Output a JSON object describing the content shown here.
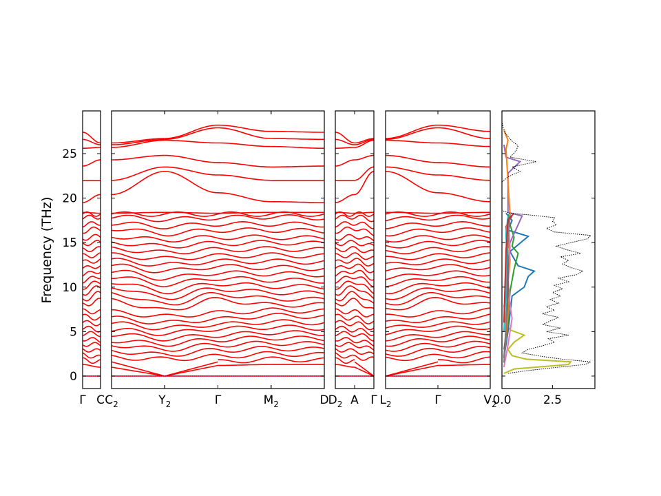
{
  "chart_data": {
    "type": "line",
    "ylabel": "Frequency (THz)",
    "ylim": [
      -1.4,
      29.8
    ],
    "yticks": [
      0,
      5,
      10,
      15,
      20,
      25
    ],
    "band_color": "#ff0000",
    "zero_line_color": "#0000cc",
    "panels": [
      {
        "segments": [
          {
            "kpoints": [
              {
                "label": "Γ",
                "sub": ""
              },
              {
                "label": "C",
                "sub": ""
              }
            ]
          }
        ]
      },
      {
        "segments": [
          {
            "kpoints": [
              {
                "label": "C",
                "sub": "2"
              },
              {
                "label": "Y",
                "sub": "2"
              }
            ]
          },
          {
            "kpoints": [
              {
                "label": "Y",
                "sub": "2"
              },
              {
                "label": "Γ",
                "sub": ""
              }
            ]
          },
          {
            "kpoints": [
              {
                "label": "Γ",
                "sub": ""
              },
              {
                "label": "M",
                "sub": "2"
              }
            ]
          },
          {
            "kpoints": [
              {
                "label": "M",
                "sub": "2"
              },
              {
                "label": "D",
                "sub": ""
              }
            ]
          }
        ]
      },
      {
        "segments": [
          {
            "kpoints": [
              {
                "label": "D",
                "sub": "2"
              },
              {
                "label": "A",
                "sub": ""
              }
            ]
          },
          {
            "kpoints": [
              {
                "label": "A",
                "sub": ""
              },
              {
                "label": "Γ",
                "sub": ""
              }
            ]
          }
        ]
      },
      {
        "segments": [
          {
            "kpoints": [
              {
                "label": "L",
                "sub": "2"
              },
              {
                "label": "Γ",
                "sub": ""
              }
            ]
          },
          {
            "kpoints": [
              {
                "label": "Γ",
                "sub": ""
              },
              {
                "label": "V",
                "sub": "2"
              }
            ]
          }
        ]
      }
    ],
    "bands": [
      {
        "freqs": [
          0.0,
          0.0,
          0.0,
          0.0,
          0.0
        ]
      },
      {
        "freqs": [
          1.3,
          1.0,
          0.0,
          1.2,
          1.3
        ]
      },
      {
        "freqs": [
          1.8,
          1.6,
          0.0,
          1.6,
          1.9
        ]
      },
      {
        "freqs": [
          2.4,
          2.1,
          1.9,
          2.2,
          2.5
        ]
      },
      {
        "freqs": [
          3.0,
          2.8,
          2.4,
          2.9,
          3.1
        ]
      },
      {
        "freqs": [
          3.6,
          3.5,
          3.0,
          3.5,
          3.7
        ]
      },
      {
        "freqs": [
          4.2,
          4.0,
          3.6,
          4.1,
          4.3
        ]
      },
      {
        "freqs": [
          4.8,
          4.7,
          4.2,
          4.6,
          4.9
        ]
      },
      {
        "freqs": [
          5.4,
          5.2,
          4.8,
          5.3,
          5.5
        ]
      },
      {
        "freqs": [
          6.0,
          5.9,
          5.4,
          5.8,
          6.1
        ]
      },
      {
        "freqs": [
          6.7,
          6.5,
          6.0,
          6.4,
          6.8
        ]
      },
      {
        "freqs": [
          7.3,
          7.2,
          6.7,
          7.1,
          7.4
        ]
      },
      {
        "freqs": [
          8.0,
          8.5,
          7.4,
          8.6,
          8.0
        ]
      },
      {
        "freqs": [
          8.6,
          9.3,
          8.1,
          9.2,
          8.7
        ]
      },
      {
        "freqs": [
          9.3,
          10.0,
          8.8,
          9.8,
          9.4
        ]
      },
      {
        "freqs": [
          10.0,
          10.6,
          9.5,
          10.4,
          10.1
        ]
      },
      {
        "freqs": [
          10.7,
          11.2,
          10.3,
          11.0,
          10.8
        ]
      },
      {
        "freqs": [
          11.4,
          11.8,
          11.0,
          11.6,
          11.5
        ]
      },
      {
        "freqs": [
          12.1,
          12.4,
          11.8,
          12.3,
          12.2
        ]
      },
      {
        "freqs": [
          12.8,
          13.0,
          12.5,
          12.9,
          12.9
        ]
      },
      {
        "freqs": [
          13.5,
          13.6,
          13.2,
          13.5,
          13.6
        ]
      },
      {
        "freqs": [
          14.2,
          14.3,
          13.9,
          14.2,
          14.3
        ]
      },
      {
        "freqs": [
          14.9,
          15.0,
          14.6,
          14.9,
          15.0
        ]
      },
      {
        "freqs": [
          15.5,
          15.7,
          15.3,
          15.6,
          15.6
        ]
      },
      {
        "freqs": [
          16.3,
          16.6,
          16.0,
          16.4,
          16.4
        ]
      },
      {
        "freqs": [
          17.0,
          17.2,
          16.8,
          17.1,
          17.1
        ]
      },
      {
        "freqs": [
          17.8,
          17.9,
          17.6,
          17.8,
          17.9
        ]
      },
      {
        "freqs": [
          18.2,
          18.2,
          18.2,
          18.2,
          18.2
        ]
      },
      {
        "freqs": [
          18.4,
          18.3,
          18.4,
          18.3,
          18.4
        ]
      },
      {
        "freqs": [
          19.5,
          20.4,
          23.0,
          20.6,
          19.6
        ]
      },
      {
        "freqs": [
          22.0,
          22.0,
          23.5,
          22.6,
          22.0
        ]
      },
      {
        "freqs": [
          23.6,
          24.3,
          24.8,
          24.0,
          23.5
        ]
      },
      {
        "freqs": [
          25.6,
          25.7,
          26.5,
          26.2,
          25.8
        ]
      },
      {
        "freqs": [
          26.6,
          26.0,
          26.6,
          27.9,
          26.7
        ]
      },
      {
        "freqs": [
          27.4,
          26.2,
          26.7,
          28.2,
          27.5
        ]
      }
    ],
    "dos": {
      "xlim": [
        0,
        4.6
      ],
      "xticks": [
        0.0,
        2.5
      ],
      "xticklabels": [
        "0.0",
        "2.5"
      ],
      "total_color": "#000000",
      "total": [
        {
          "f": 0.3,
          "v": 0.3
        },
        {
          "f": 0.6,
          "v": 1.2
        },
        {
          "f": 1.0,
          "v": 2.8
        },
        {
          "f": 1.3,
          "v": 4.1
        },
        {
          "f": 1.6,
          "v": 4.4
        },
        {
          "f": 1.9,
          "v": 3.0
        },
        {
          "f": 2.2,
          "v": 2.0
        },
        {
          "f": 2.6,
          "v": 1.0
        },
        {
          "f": 3.0,
          "v": 1.3
        },
        {
          "f": 3.4,
          "v": 2.0
        },
        {
          "f": 3.8,
          "v": 2.6
        },
        {
          "f": 4.2,
          "v": 2.3
        },
        {
          "f": 4.6,
          "v": 3.3
        },
        {
          "f": 5.0,
          "v": 2.2
        },
        {
          "f": 5.4,
          "v": 2.9
        },
        {
          "f": 5.8,
          "v": 2.0
        },
        {
          "f": 6.2,
          "v": 2.4
        },
        {
          "f": 6.6,
          "v": 2.8
        },
        {
          "f": 7.0,
          "v": 2.0
        },
        {
          "f": 7.4,
          "v": 2.6
        },
        {
          "f": 7.8,
          "v": 2.2
        },
        {
          "f": 8.2,
          "v": 2.8
        },
        {
          "f": 8.6,
          "v": 2.4
        },
        {
          "f": 9.0,
          "v": 2.9
        },
        {
          "f": 9.4,
          "v": 2.5
        },
        {
          "f": 9.8,
          "v": 3.0
        },
        {
          "f": 10.2,
          "v": 2.6
        },
        {
          "f": 10.6,
          "v": 3.3
        },
        {
          "f": 11.0,
          "v": 2.8
        },
        {
          "f": 11.4,
          "v": 3.7
        },
        {
          "f": 11.8,
          "v": 4.0
        },
        {
          "f": 12.2,
          "v": 3.4
        },
        {
          "f": 12.6,
          "v": 3.0
        },
        {
          "f": 13.0,
          "v": 3.3
        },
        {
          "f": 13.4,
          "v": 2.9
        },
        {
          "f": 13.8,
          "v": 3.9
        },
        {
          "f": 14.2,
          "v": 3.2
        },
        {
          "f": 14.6,
          "v": 2.7
        },
        {
          "f": 15.0,
          "v": 3.4
        },
        {
          "f": 15.4,
          "v": 4.2
        },
        {
          "f": 15.8,
          "v": 4.4
        },
        {
          "f": 16.2,
          "v": 2.6
        },
        {
          "f": 16.6,
          "v": 2.2
        },
        {
          "f": 17.0,
          "v": 2.7
        },
        {
          "f": 17.4,
          "v": 2.5
        },
        {
          "f": 17.8,
          "v": 2.6
        },
        {
          "f": 18.1,
          "v": 1.4
        },
        {
          "f": 18.3,
          "v": 0.4
        },
        {
          "f": 18.6,
          "v": 0.0
        },
        {
          "f": 21.8,
          "v": 0.0
        },
        {
          "f": 22.4,
          "v": 0.3
        },
        {
          "f": 23.0,
          "v": 0.9
        },
        {
          "f": 23.5,
          "v": 0.5
        },
        {
          "f": 24.1,
          "v": 1.7
        },
        {
          "f": 24.6,
          "v": 0.4
        },
        {
          "f": 25.3,
          "v": 0.7
        },
        {
          "f": 25.9,
          "v": 0.8
        },
        {
          "f": 26.4,
          "v": 0.5
        },
        {
          "f": 27.2,
          "v": 0.2
        },
        {
          "f": 28.0,
          "v": 0.05
        },
        {
          "f": 28.6,
          "v": 0.0
        }
      ],
      "partial": [
        {
          "color": "#bcbd22",
          "points": [
            {
              "f": 0.3,
              "v": 0.1
            },
            {
              "f": 0.8,
              "v": 0.6
            },
            {
              "f": 1.3,
              "v": 3.3
            },
            {
              "f": 1.6,
              "v": 3.4
            },
            {
              "f": 1.9,
              "v": 1.2
            },
            {
              "f": 2.3,
              "v": 0.5
            },
            {
              "f": 3.0,
              "v": 0.3
            },
            {
              "f": 3.8,
              "v": 0.6
            },
            {
              "f": 4.6,
              "v": 1.1
            },
            {
              "f": 5.2,
              "v": 0.4
            },
            {
              "f": 6.0,
              "v": 0.2
            },
            {
              "f": 8.0,
              "v": 0.1
            }
          ]
        },
        {
          "color": "#1f77b4",
          "points": [
            {
              "f": 2.0,
              "v": 0.1
            },
            {
              "f": 5.0,
              "v": 0.3
            },
            {
              "f": 9.0,
              "v": 0.5
            },
            {
              "f": 10.0,
              "v": 1.1
            },
            {
              "f": 11.2,
              "v": 1.3
            },
            {
              "f": 11.8,
              "v": 1.6
            },
            {
              "f": 12.4,
              "v": 0.8
            },
            {
              "f": 14.0,
              "v": 0.4
            },
            {
              "f": 15.7,
              "v": 1.3
            },
            {
              "f": 16.4,
              "v": 0.3
            },
            {
              "f": 17.5,
              "v": 0.5
            },
            {
              "f": 18.3,
              "v": 0.2
            }
          ]
        },
        {
          "color": "#2ca02c",
          "points": [
            {
              "f": 3.0,
              "v": 0.1
            },
            {
              "f": 6.0,
              "v": 0.3
            },
            {
              "f": 9.5,
              "v": 0.4
            },
            {
              "f": 12.0,
              "v": 0.6
            },
            {
              "f": 13.8,
              "v": 0.8
            },
            {
              "f": 14.6,
              "v": 0.5
            },
            {
              "f": 15.6,
              "v": 0.6
            },
            {
              "f": 17.0,
              "v": 0.4
            },
            {
              "f": 18.2,
              "v": 0.3
            }
          ]
        },
        {
          "color": "#9467bd",
          "points": [
            {
              "f": 6.0,
              "v": 0.2
            },
            {
              "f": 10.0,
              "v": 0.3
            },
            {
              "f": 14.0,
              "v": 0.2
            },
            {
              "f": 18.0,
              "v": 1.0
            },
            {
              "f": 18.4,
              "v": 0.3
            },
            {
              "f": 22.8,
              "v": 0.3
            },
            {
              "f": 24.1,
              "v": 0.9
            },
            {
              "f": 24.6,
              "v": 0.2
            },
            {
              "f": 26.0,
              "v": 0.1
            }
          ]
        },
        {
          "color": "#ff7f0e",
          "points": [
            {
              "f": 4.0,
              "v": 0.2
            },
            {
              "f": 7.0,
              "v": 0.3
            },
            {
              "f": 10.5,
              "v": 0.3
            },
            {
              "f": 13.0,
              "v": 0.4
            },
            {
              "f": 16.0,
              "v": 0.3
            },
            {
              "f": 18.1,
              "v": 0.4
            },
            {
              "f": 25.5,
              "v": 0.2
            },
            {
              "f": 26.5,
              "v": 0.3
            },
            {
              "f": 27.6,
              "v": 0.1
            }
          ]
        },
        {
          "color": "#e377c2",
          "points": [
            {
              "f": 1.0,
              "v": 0.1
            },
            {
              "f": 3.5,
              "v": 0.3
            },
            {
              "f": 6.5,
              "v": 0.5
            },
            {
              "f": 8.0,
              "v": 0.4
            },
            {
              "f": 11.0,
              "v": 0.3
            },
            {
              "f": 14.5,
              "v": 0.4
            },
            {
              "f": 17.5,
              "v": 0.3
            }
          ]
        },
        {
          "color": "#8c564b",
          "points": [
            {
              "f": 2.0,
              "v": 0.1
            },
            {
              "f": 5.5,
              "v": 0.2
            },
            {
              "f": 9.0,
              "v": 0.3
            },
            {
              "f": 13.5,
              "v": 0.3
            },
            {
              "f": 16.8,
              "v": 0.2
            },
            {
              "f": 18.0,
              "v": 0.5
            }
          ]
        },
        {
          "color": "#7f7f7f",
          "points": [
            {
              "f": 1.5,
              "v": 0.1
            },
            {
              "f": 4.5,
              "v": 0.2
            },
            {
              "f": 8.5,
              "v": 0.25
            },
            {
              "f": 12.5,
              "v": 0.2
            },
            {
              "f": 15.0,
              "v": 0.3
            },
            {
              "f": 18.2,
              "v": 0.4
            }
          ]
        },
        {
          "color": "#17becf",
          "points": [
            {
              "f": 5.0,
              "v": 0.1
            },
            {
              "f": 9.5,
              "v": 0.2
            },
            {
              "f": 13.0,
              "v": 0.25
            },
            {
              "f": 16.0,
              "v": 0.2
            },
            {
              "f": 18.0,
              "v": 0.3
            }
          ]
        },
        {
          "color": "#d62728",
          "points": [
            {
              "f": 6.0,
              "v": 0.1
            },
            {
              "f": 10.0,
              "v": 0.15
            },
            {
              "f": 14.0,
              "v": 0.2
            },
            {
              "f": 17.6,
              "v": 0.3
            },
            {
              "f": 18.3,
              "v": 0.6
            }
          ]
        }
      ]
    }
  }
}
